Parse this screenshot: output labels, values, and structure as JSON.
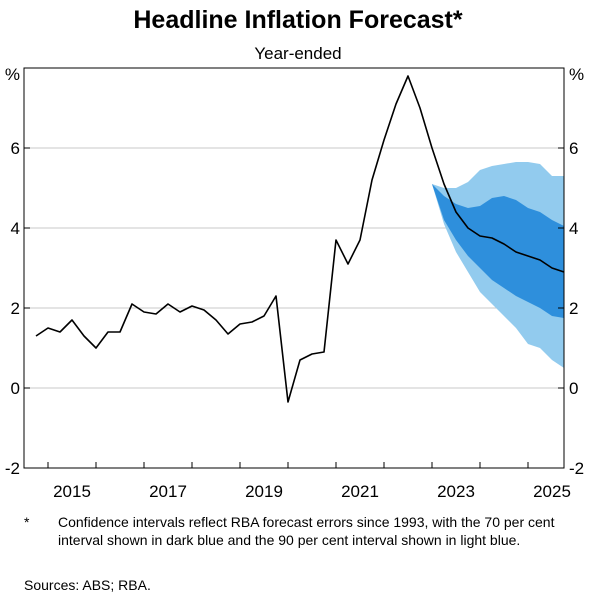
{
  "header": {
    "title": "Headline Inflation Forecast*",
    "subtitle": "Year-ended"
  },
  "footnote": {
    "marker": "*",
    "text": "Confidence intervals reflect RBA forecast errors since 1993, with the 70 per cent interval shown in dark blue and the 90 per cent interval shown in light blue."
  },
  "sources": "Sources: ABS; RBA.",
  "colors": {
    "line": "#000000",
    "band_90": "#92cbee",
    "band_70": "#2e8fdc",
    "grid": "#c8c8c8"
  },
  "chart_data": {
    "type": "line",
    "title": "Headline Inflation Forecast*",
    "subtitle": "Year-ended",
    "y_unit_left": "%",
    "y_unit_right": "%",
    "ylim": [
      -2,
      8
    ],
    "yticks": [
      -2,
      0,
      2,
      4,
      6
    ],
    "xlim": [
      2014.5,
      2025.75
    ],
    "xticks": [
      {
        "label": "2015",
        "x": 2015
      },
      {
        "label": "2017",
        "x": 2017
      },
      {
        "label": "2019",
        "x": 2019
      },
      {
        "label": "2021",
        "x": 2021
      },
      {
        "label": "2023",
        "x": 2023
      },
      {
        "label": "2025",
        "x": 2025
      }
    ],
    "grid": true,
    "series": [
      {
        "role": "actual_and_forecast",
        "x": [
          2014.75,
          2015.0,
          2015.25,
          2015.5,
          2015.75,
          2016.0,
          2016.25,
          2016.5,
          2016.75,
          2017.0,
          2017.25,
          2017.5,
          2017.75,
          2018.0,
          2018.25,
          2018.5,
          2018.75,
          2019.0,
          2019.25,
          2019.5,
          2019.75,
          2020.0,
          2020.25,
          2020.5,
          2020.75,
          2021.0,
          2021.25,
          2021.5,
          2021.75,
          2022.0,
          2022.25,
          2022.5,
          2022.75,
          2023.0,
          2023.25,
          2023.5,
          2023.75,
          2024.0,
          2024.25,
          2024.5,
          2024.75,
          2025.0,
          2025.25,
          2025.5,
          2025.75
        ],
        "values": [
          1.3,
          1.5,
          1.4,
          1.7,
          1.3,
          1.0,
          1.4,
          1.4,
          2.1,
          1.9,
          1.85,
          2.1,
          1.9,
          2.05,
          1.95,
          1.7,
          1.35,
          1.6,
          1.65,
          1.8,
          2.3,
          -0.35,
          0.7,
          0.85,
          0.9,
          3.7,
          3.1,
          3.7,
          5.2,
          6.2,
          7.1,
          7.8,
          7.0,
          6.0,
          5.1,
          4.4,
          4.0,
          3.8,
          3.75,
          3.6,
          3.4,
          3.3,
          3.2,
          3.0,
          2.9
        ]
      }
    ],
    "bands": {
      "x": [
        2023.0,
        2023.25,
        2023.5,
        2023.75,
        2024.0,
        2024.25,
        2024.5,
        2024.75,
        2025.0,
        2025.25,
        2025.5,
        2025.75
      ],
      "band_90": {
        "upper": [
          5.1,
          5.0,
          5.0,
          5.15,
          5.45,
          5.55,
          5.6,
          5.65,
          5.65,
          5.6,
          5.3,
          5.3
        ],
        "lower": [
          5.1,
          4.1,
          3.4,
          2.9,
          2.4,
          2.1,
          1.8,
          1.5,
          1.1,
          1.0,
          0.7,
          0.5
        ]
      },
      "band_70": {
        "upper": [
          5.1,
          4.8,
          4.6,
          4.5,
          4.55,
          4.75,
          4.8,
          4.7,
          4.5,
          4.4,
          4.2,
          4.05
        ],
        "lower": [
          5.1,
          4.2,
          3.7,
          3.3,
          3.0,
          2.7,
          2.5,
          2.3,
          2.15,
          2.0,
          1.8,
          1.75
        ]
      }
    }
  }
}
